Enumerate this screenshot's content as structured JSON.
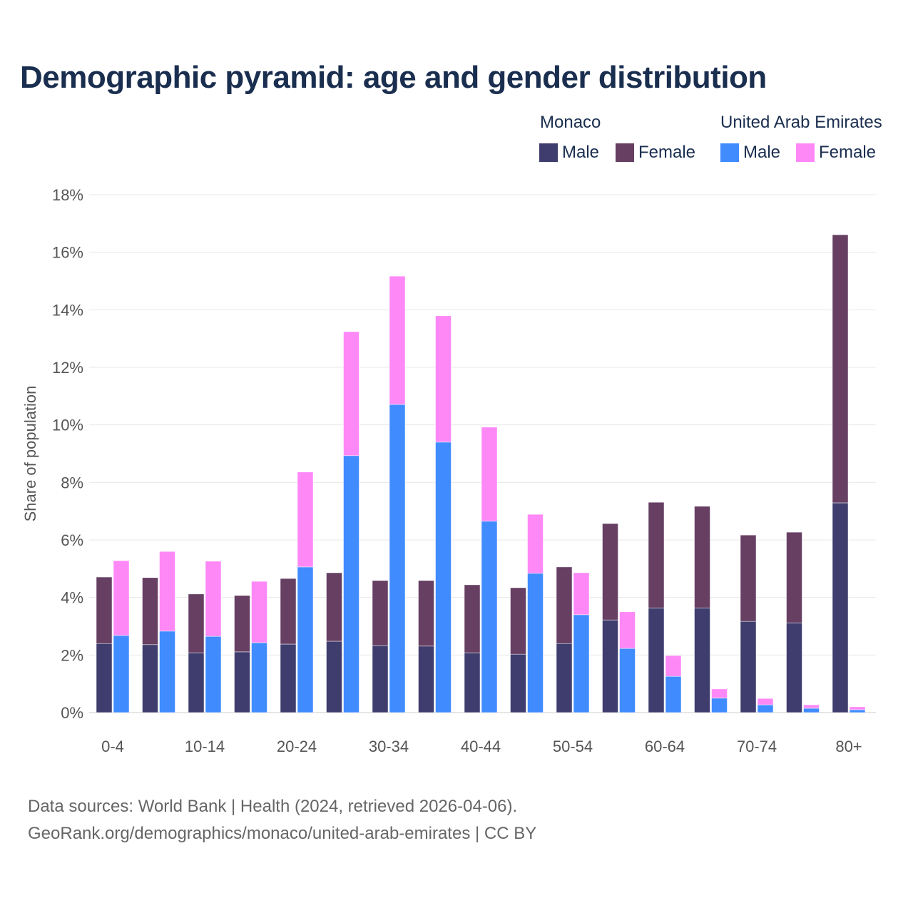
{
  "title": "Demographic pyramid: age and gender distribution",
  "legend": {
    "groups": [
      {
        "name": "Monaco",
        "items": [
          {
            "label": "Male",
            "color": "#3f3d6e"
          },
          {
            "label": "Female",
            "color": "#663f63"
          }
        ]
      },
      {
        "name": "United Arab Emirates",
        "items": [
          {
            "label": "Male",
            "color": "#408cff"
          },
          {
            "label": "Female",
            "color": "#ff88f7"
          }
        ]
      }
    ]
  },
  "footer": {
    "line1": "Data sources: World Bank | Health (2024, retrieved 2026-04-06).",
    "line2": "GeoRank.org/demographics/monaco/united-arab-emirates | CC BY"
  },
  "chart_data": {
    "type": "bar",
    "stacked": true,
    "title": "Demographic pyramid: age and gender distribution",
    "xlabel": "",
    "ylabel": "Share of population",
    "ylim": [
      0,
      18
    ],
    "yticks": [
      0,
      2,
      4,
      6,
      8,
      10,
      12,
      14,
      16,
      18
    ],
    "ytick_suffix": "%",
    "grid": true,
    "legend_position": "top-right",
    "categories": [
      "0-4",
      "5-9",
      "10-14",
      "15-19",
      "20-24",
      "25-29",
      "30-34",
      "35-39",
      "40-44",
      "45-49",
      "50-54",
      "55-59",
      "60-64",
      "65-69",
      "70-74",
      "75-79",
      "80+"
    ],
    "xtick_labels_shown": [
      "0-4",
      "10-14",
      "20-24",
      "30-34",
      "40-44",
      "50-54",
      "60-64",
      "70-74",
      "80+"
    ],
    "series": [
      {
        "name": "Monaco Male",
        "country": "Monaco",
        "stack": "Monaco",
        "color": "#3f3d6e",
        "values": [
          2.4,
          2.36,
          2.08,
          2.11,
          2.38,
          2.48,
          2.33,
          2.31,
          2.08,
          2.03,
          2.4,
          3.22,
          3.64,
          3.64,
          3.17,
          3.12,
          7.29
        ]
      },
      {
        "name": "Monaco Female",
        "country": "Monaco",
        "stack": "Monaco",
        "color": "#663f63",
        "values": [
          2.31,
          2.33,
          2.04,
          1.96,
          2.28,
          2.38,
          2.26,
          2.28,
          2.36,
          2.31,
          2.66,
          3.35,
          3.67,
          3.53,
          3.0,
          3.15,
          9.32
        ]
      },
      {
        "name": "United Arab Emirates Male",
        "country": "United Arab Emirates",
        "stack": "UAE",
        "color": "#408cff",
        "values": [
          2.68,
          2.83,
          2.65,
          2.43,
          5.06,
          8.93,
          10.71,
          9.4,
          6.65,
          4.84,
          3.4,
          2.23,
          1.26,
          0.5,
          0.27,
          0.15,
          0.1
        ]
      },
      {
        "name": "United Arab Emirates Female",
        "country": "United Arab Emirates",
        "stack": "UAE",
        "color": "#ff88f7",
        "values": [
          2.6,
          2.77,
          2.61,
          2.13,
          3.3,
          4.31,
          4.46,
          4.39,
          3.27,
          2.05,
          1.46,
          1.27,
          0.72,
          0.32,
          0.22,
          0.12,
          0.1
        ]
      }
    ]
  }
}
